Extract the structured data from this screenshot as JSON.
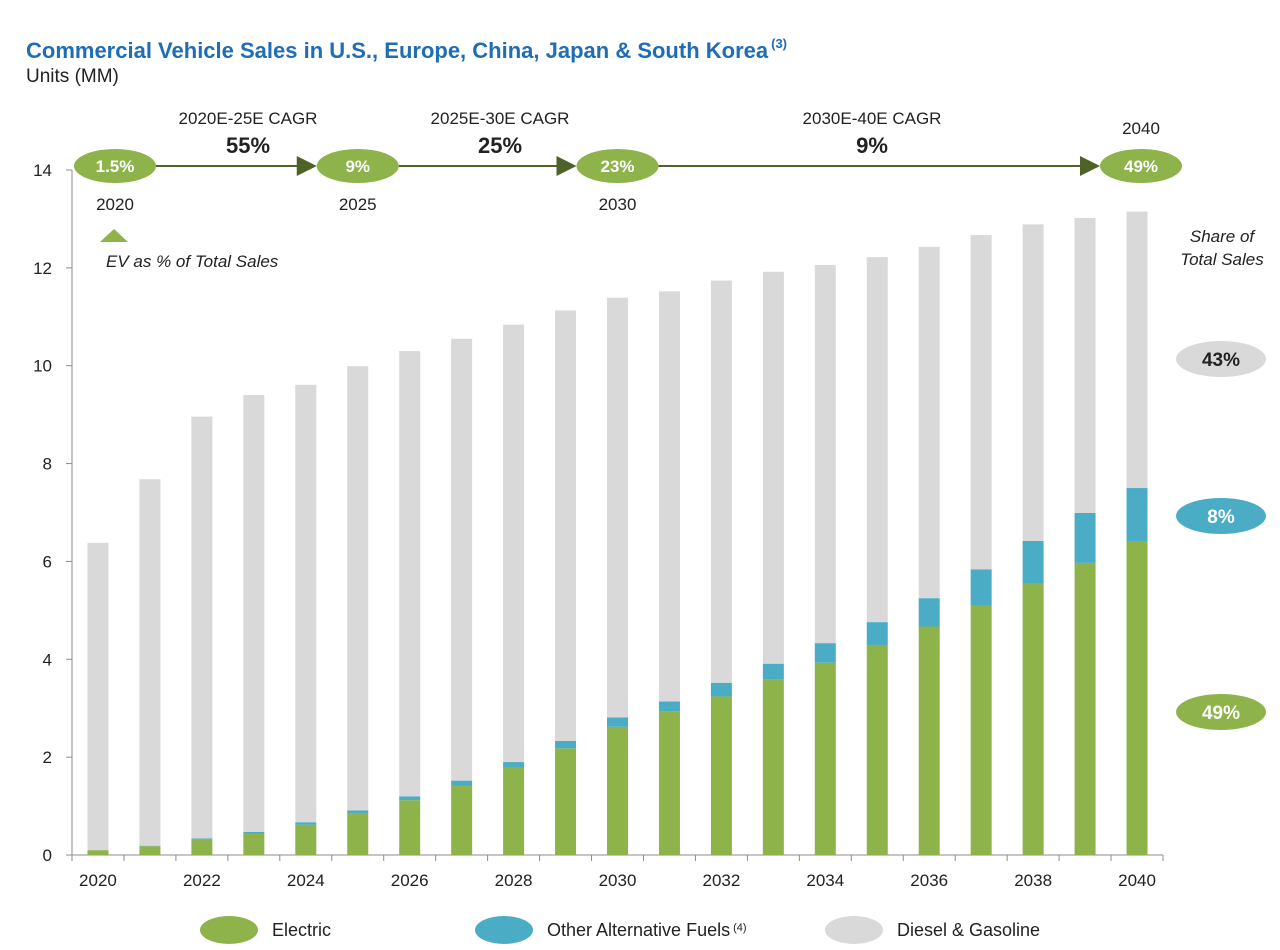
{
  "title": "Commercial Vehicle Sales in U.S., Europe, China, Japan & South Korea",
  "title_footnote": "(3)",
  "subtitle": "Units (MM)",
  "colors": {
    "electric": "#8db34a",
    "other_alt": "#4bacc6",
    "diesel": "#d9d9d9",
    "arrow": "#4f6228",
    "title": "#1f6db5"
  },
  "annotations": {
    "cagr": [
      {
        "period": "2020E-25E  CAGR",
        "value": "55%"
      },
      {
        "period": "2025E-30E  CAGR",
        "value": "25%"
      },
      {
        "period": "2030E-40E  CAGR",
        "value": "9%"
      }
    ],
    "ev_share_milestones": [
      {
        "year": "2020",
        "share": "1.5%"
      },
      {
        "year": "2025",
        "share": "9%"
      },
      {
        "year": "2030",
        "share": "23%"
      },
      {
        "year": "2040",
        "share": "49%"
      }
    ],
    "ev_share_label": "EV as % of Total Sales",
    "share_of_total_title": [
      "Share of",
      "Total Sales"
    ],
    "share_of_total": [
      {
        "series": "Diesel & Gasoline",
        "share": "43%"
      },
      {
        "series": "Other Alternative Fuels",
        "share": "8%"
      },
      {
        "series": "Electric",
        "share": "49%"
      }
    ]
  },
  "legend": {
    "items": [
      {
        "label": "Electric",
        "footnote": ""
      },
      {
        "label": "Other Alternative Fuels",
        "footnote": "(4)"
      },
      {
        "label": "Diesel & Gasoline",
        "footnote": ""
      }
    ]
  },
  "chart_data": {
    "type": "bar",
    "stacked": true,
    "x": [
      2020,
      2021,
      2022,
      2023,
      2024,
      2025,
      2026,
      2027,
      2028,
      2029,
      2030,
      2031,
      2032,
      2033,
      2034,
      2035,
      2036,
      2037,
      2038,
      2039,
      2040
    ],
    "x_tick_labels": [
      "2020",
      "2022",
      "2024",
      "2026",
      "2028",
      "2030",
      "2032",
      "2034",
      "2036",
      "2038",
      "2040"
    ],
    "y_ticks": [
      0,
      2,
      4,
      6,
      8,
      10,
      12,
      14
    ],
    "ylim": [
      0,
      14
    ],
    "xlabel": "",
    "ylabel": "Units (MM)",
    "grid": false,
    "series": [
      {
        "name": "Electric",
        "values": [
          0.1,
          0.18,
          0.32,
          0.44,
          0.62,
          0.85,
          1.12,
          1.42,
          1.78,
          2.18,
          2.62,
          2.93,
          3.24,
          3.58,
          3.93,
          4.28,
          4.67,
          5.1,
          5.55,
          5.97,
          6.4
        ]
      },
      {
        "name": "Other Alternative Fuels",
        "values": [
          0.0,
          0.01,
          0.02,
          0.03,
          0.05,
          0.06,
          0.08,
          0.1,
          0.12,
          0.15,
          0.19,
          0.21,
          0.28,
          0.33,
          0.4,
          0.48,
          0.58,
          0.74,
          0.87,
          1.02,
          1.1
        ]
      },
      {
        "name": "Diesel & Gasoline",
        "values": [
          6.28,
          7.49,
          8.62,
          8.93,
          8.94,
          9.08,
          9.1,
          9.03,
          8.94,
          8.8,
          8.58,
          8.38,
          8.22,
          8.01,
          7.73,
          7.46,
          7.18,
          6.83,
          6.47,
          6.03,
          5.65
        ]
      }
    ]
  }
}
